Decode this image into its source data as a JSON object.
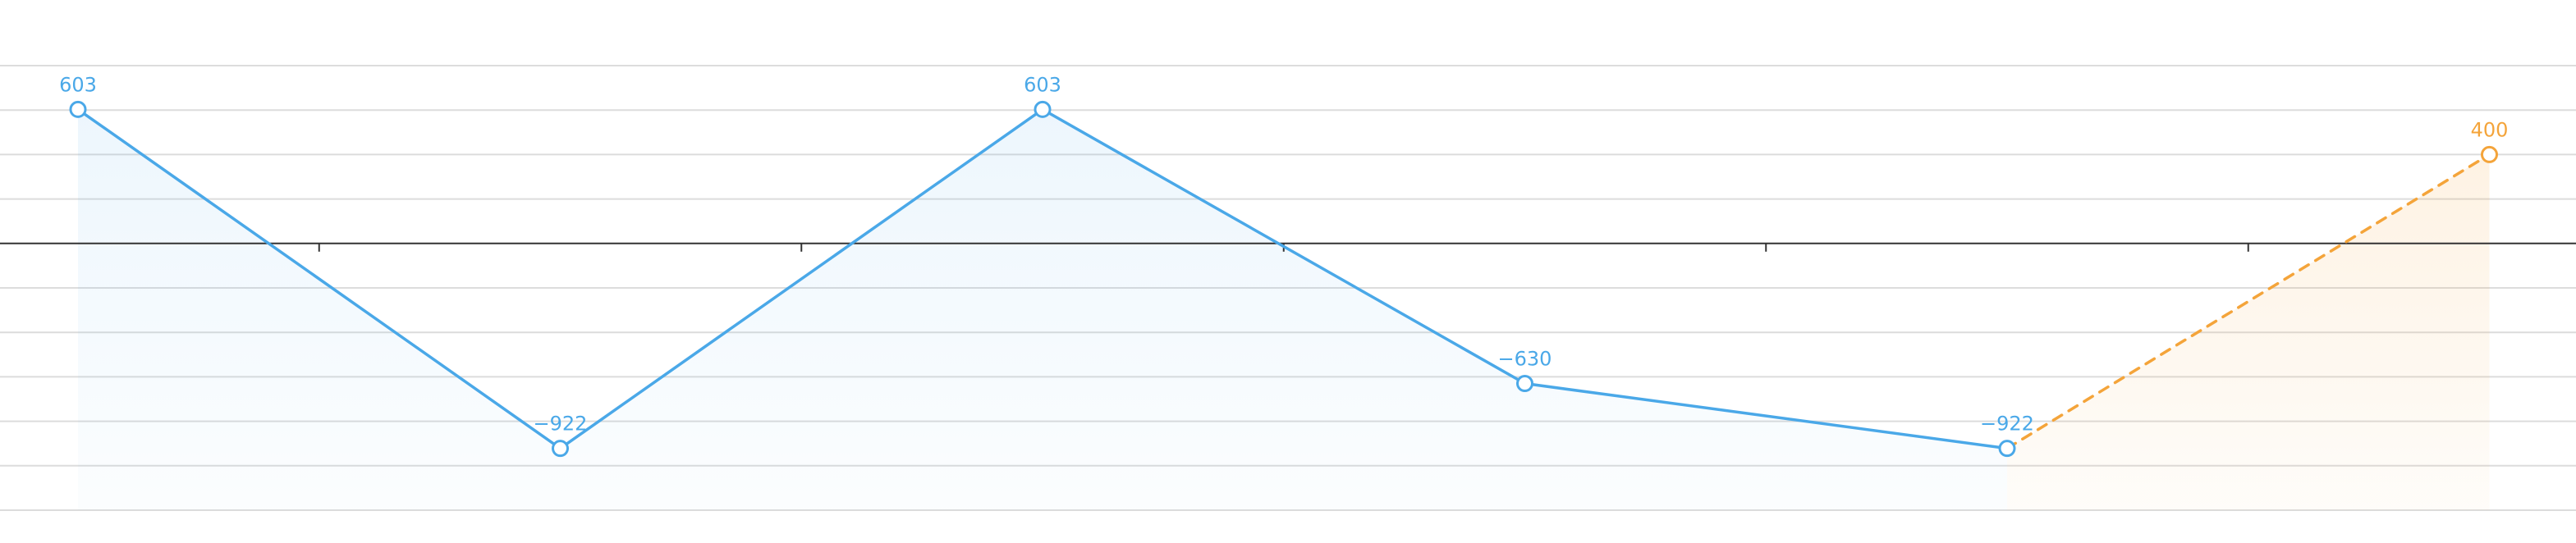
{
  "chart_data": {
    "type": "line",
    "title": "",
    "xlabel": "",
    "ylabel": "",
    "x": [
      0,
      1,
      2,
      3,
      4,
      5
    ],
    "ylim": [
      -1200,
      800
    ],
    "y_grid": [
      800,
      600,
      400,
      200,
      -200,
      -400,
      -600,
      -800,
      -1000,
      -1200
    ],
    "zero_line": 0,
    "x_ticks": [
      0.5,
      1.5,
      2.5,
      3.5,
      4.5
    ],
    "grid": true,
    "legend": "none",
    "series": [
      {
        "values": [
          603,
          -922,
          603,
          -630,
          -922
        ],
        "labels": [
          "603",
          "−922",
          "603",
          "−630",
          "−922"
        ],
        "color": "#4aa8e8",
        "style": "solid",
        "x": [
          0,
          1,
          2,
          3,
          4
        ]
      },
      {
        "values": [
          -922,
          400
        ],
        "labels": [
          "",
          "400"
        ],
        "color": "#f4a43a",
        "style": "dashed",
        "x": [
          4,
          5
        ]
      }
    ]
  }
}
